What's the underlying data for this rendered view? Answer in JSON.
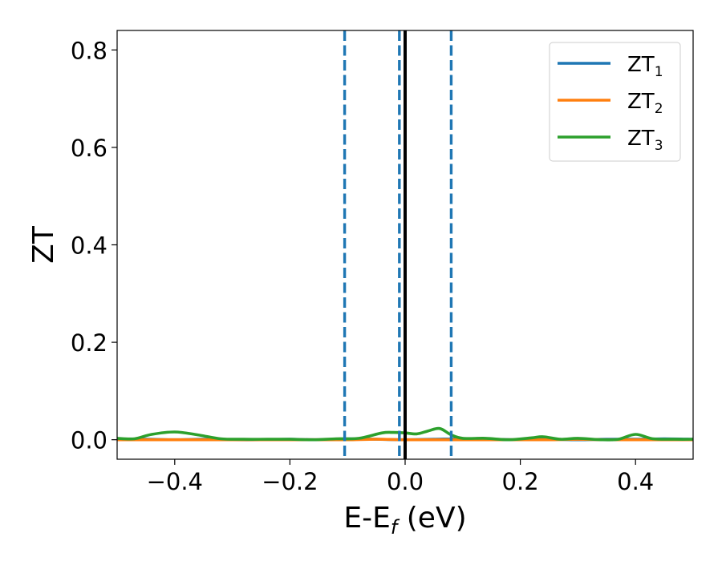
{
  "chart_data": {
    "type": "line",
    "xlabel_main": "E-E",
    "xlabel_sub": "f",
    "xlabel_unit": " (eV)",
    "ylabel": "ZT",
    "xlim": [
      -0.5,
      0.5
    ],
    "ylim": [
      -0.04,
      0.84
    ],
    "xticks": [
      -0.4,
      -0.2,
      0.0,
      0.2,
      0.4
    ],
    "xtick_labels": [
      "−0.4",
      "−0.2",
      "0.0",
      "0.2",
      "0.4"
    ],
    "yticks": [
      0.0,
      0.2,
      0.4,
      0.6,
      0.8
    ],
    "ytick_labels": [
      "0.0",
      "0.2",
      "0.4",
      "0.6",
      "0.8"
    ],
    "grid": false,
    "legend_position": "top-right",
    "vertical_lines": [
      {
        "x": -0.105,
        "style": "dashed",
        "color": "#1f77b4"
      },
      {
        "x": -0.01,
        "style": "dashed",
        "color": "#1f77b4"
      },
      {
        "x": 0.0,
        "style": "solid",
        "color": "#000000"
      },
      {
        "x": 0.08,
        "style": "dashed",
        "color": "#1f77b4"
      }
    ],
    "series": [
      {
        "name_main": "ZT",
        "name_sub": "1",
        "color": "#1f77b4",
        "x": [
          -0.5,
          -0.45,
          -0.4,
          -0.35,
          -0.3,
          -0.25,
          -0.2,
          -0.15,
          -0.1,
          -0.05,
          0.0,
          0.05,
          0.1,
          0.15,
          0.2,
          0.25,
          0.3,
          0.35,
          0.4,
          0.45,
          0.5
        ],
        "y": [
          0.0,
          0.001,
          0.0,
          0.001,
          0.0,
          0.0,
          0.001,
          0.0,
          0.002,
          0.001,
          0.0,
          0.001,
          0.002,
          0.001,
          0.0,
          0.001,
          0.0,
          0.001,
          0.001,
          0.002,
          0.001
        ]
      },
      {
        "name_main": "ZT",
        "name_sub": "2",
        "color": "#ff7f0e",
        "x": [
          -0.5,
          -0.45,
          -0.4,
          -0.35,
          -0.3,
          -0.25,
          -0.2,
          -0.15,
          -0.1,
          -0.05,
          0.0,
          0.05,
          0.1,
          0.15,
          0.2,
          0.25,
          0.3,
          0.35,
          0.4,
          0.45,
          0.5
        ],
        "y": [
          0.0,
          0.0,
          0.0,
          0.0,
          0.0,
          0.0,
          0.0,
          0.0,
          0.0,
          0.001,
          0.0,
          0.0,
          0.0,
          0.0,
          0.0,
          0.0,
          0.001,
          0.0,
          0.0,
          0.0,
          0.0
        ]
      },
      {
        "name_main": "ZT",
        "name_sub": "3",
        "color": "#2ca02c",
        "x": [
          -0.5,
          -0.47,
          -0.44,
          -0.4,
          -0.36,
          -0.32,
          -0.28,
          -0.24,
          -0.2,
          -0.16,
          -0.12,
          -0.08,
          -0.04,
          -0.02,
          0.0,
          0.02,
          0.04,
          0.06,
          0.08,
          0.1,
          0.14,
          0.18,
          0.22,
          0.24,
          0.27,
          0.3,
          0.34,
          0.37,
          0.4,
          0.43,
          0.47,
          0.5
        ],
        "y": [
          0.003,
          0.002,
          0.011,
          0.016,
          0.01,
          0.002,
          0.001,
          0.001,
          0.001,
          0.0,
          0.002,
          0.003,
          0.014,
          0.015,
          0.014,
          0.012,
          0.018,
          0.023,
          0.01,
          0.003,
          0.003,
          0.0,
          0.004,
          0.006,
          0.001,
          0.003,
          0.0,
          0.001,
          0.011,
          0.002,
          0.001,
          0.001
        ]
      }
    ]
  }
}
